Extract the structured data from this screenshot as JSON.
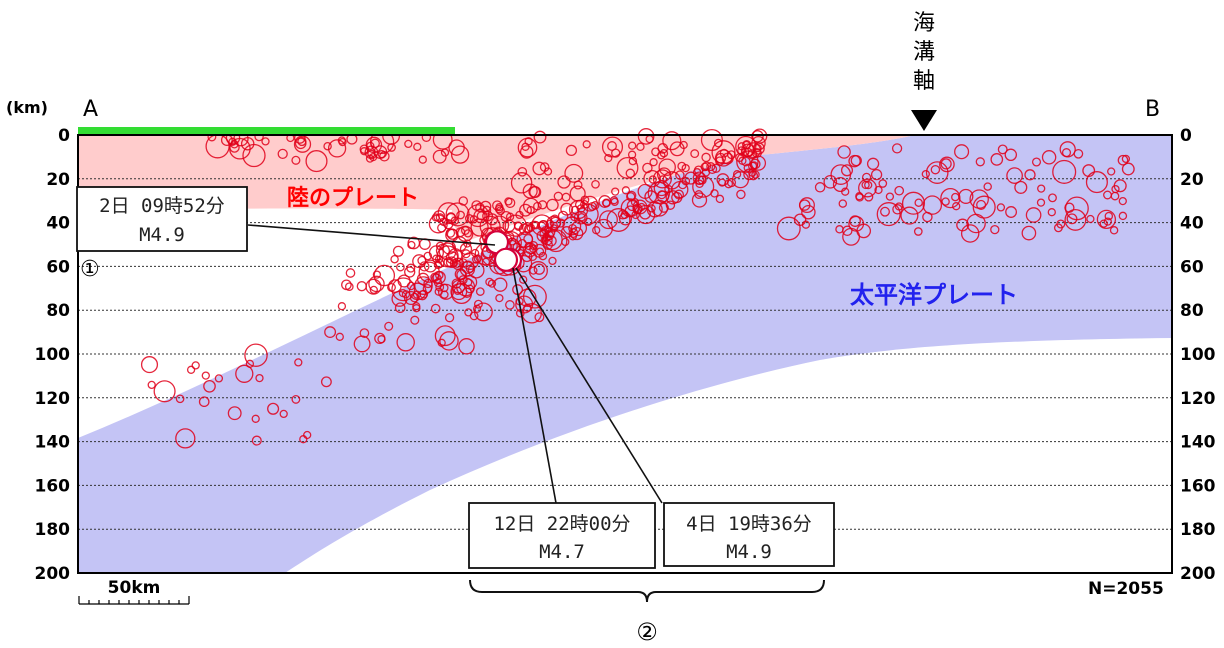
{
  "chart_data": {
    "type": "scatter",
    "title": "",
    "xlabel": "",
    "ylabel": "(km)",
    "ylim": [
      0,
      200
    ],
    "y_inverted": true,
    "y_ticks": [
      0,
      20,
      40,
      60,
      80,
      100,
      120,
      140,
      160,
      180,
      200
    ],
    "grid": "dashed horizontal",
    "section_start_label": "A",
    "section_end_label": "B",
    "trench_label": "海溝軸",
    "count_label": "N=2055",
    "scale_bar_label": "50km",
    "regions": [
      {
        "name": "陸のプレート",
        "color": "#ffcccc"
      },
      {
        "name": "太平洋プレート",
        "color": "#c4c4f5"
      }
    ],
    "highlighted_events": [
      {
        "date": "2日 09時52分",
        "magnitude": "M4.9",
        "group": "①",
        "depth_km": 49
      },
      {
        "date": "12日 22時00分",
        "magnitude": "M4.7",
        "group": "②",
        "depth_km": 57
      },
      {
        "date": "4日 19時36分",
        "magnitude": "M4.9",
        "group": "②",
        "depth_km": 57
      }
    ],
    "group_labels": [
      "①",
      "②"
    ],
    "n_events": 2055
  },
  "colors": {
    "land_plate": "#ffcccc",
    "pacific_plate": "#c4c4f5",
    "land_label": "#ff0000",
    "pacific_label": "#2222ee",
    "quake": "#e0001a",
    "coastline_bar": "#33dd33"
  }
}
